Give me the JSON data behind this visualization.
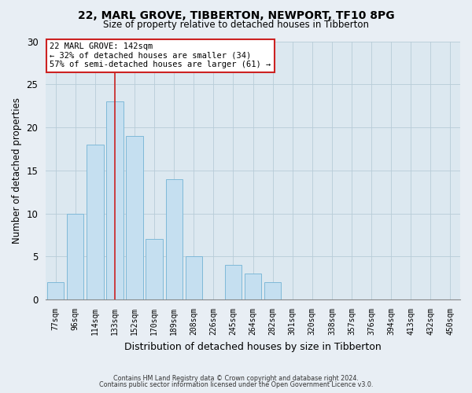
{
  "title": "22, MARL GROVE, TIBBERTON, NEWPORT, TF10 8PG",
  "subtitle": "Size of property relative to detached houses in Tibberton",
  "xlabel": "Distribution of detached houses by size in Tibberton",
  "ylabel": "Number of detached properties",
  "bar_labels": [
    "77sqm",
    "96sqm",
    "114sqm",
    "133sqm",
    "152sqm",
    "170sqm",
    "189sqm",
    "208sqm",
    "226sqm",
    "245sqm",
    "264sqm",
    "282sqm",
    "301sqm",
    "320sqm",
    "338sqm",
    "357sqm",
    "376sqm",
    "394sqm",
    "413sqm",
    "432sqm",
    "450sqm"
  ],
  "bar_values": [
    2,
    10,
    18,
    23,
    19,
    7,
    14,
    5,
    0,
    4,
    3,
    2,
    0,
    0,
    0,
    0,
    0,
    0,
    0,
    0,
    0
  ],
  "bar_color": "#c5dff0",
  "bar_edge_color": "#7fb9d8",
  "highlight_bar_index": 3,
  "highlight_color": "#cc2222",
  "ylim": [
    0,
    30
  ],
  "yticks": [
    0,
    5,
    10,
    15,
    20,
    25,
    30
  ],
  "annotation_title": "22 MARL GROVE: 142sqm",
  "annotation_line1": "← 32% of detached houses are smaller (34)",
  "annotation_line2": "57% of semi-detached houses are larger (61) →",
  "annotation_box_color": "#ffffff",
  "annotation_box_edge": "#cc2222",
  "footer1": "Contains HM Land Registry data © Crown copyright and database right 2024.",
  "footer2": "Contains public sector information licensed under the Open Government Licence v3.0.",
  "background_color": "#e8eef4",
  "plot_background": "#dce8f0"
}
